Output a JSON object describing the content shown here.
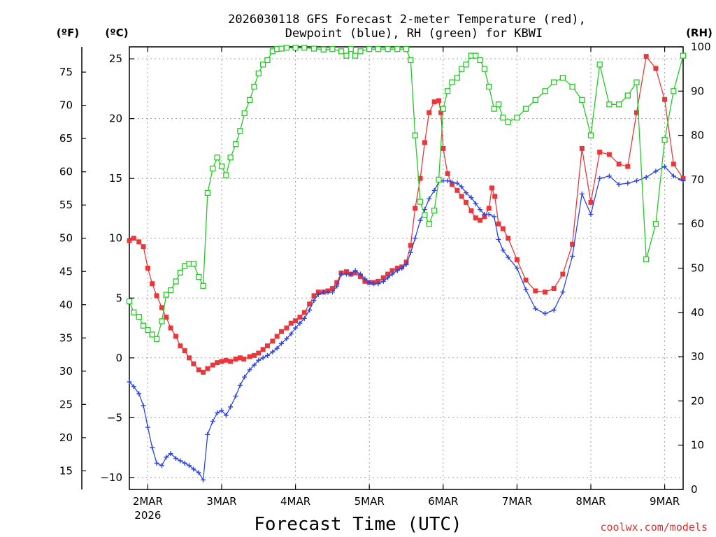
{
  "chart_data": {
    "type": "line",
    "title_line1": "2026030118 GFS Forecast 2-meter Temperature (red),",
    "title_line2": "Dewpoint (blue), RH (green) for KBWI",
    "xlabel": "Forecast Time (UTC)",
    "credit": "coolwx.com/models",
    "units": {
      "fahrenheit": "(ºF)",
      "celsius": "(ºC)",
      "rh": "(RH)"
    },
    "x_range_days": [
      -0.25,
      7.25
    ],
    "x_ticks": [
      {
        "day": 0,
        "label": "2MAR",
        "sublabel": "2026"
      },
      {
        "day": 1,
        "label": "3MAR"
      },
      {
        "day": 2,
        "label": "4MAR"
      },
      {
        "day": 3,
        "label": "5MAR"
      },
      {
        "day": 4,
        "label": "6MAR"
      },
      {
        "day": 5,
        "label": "7MAR"
      },
      {
        "day": 6,
        "label": "8MAR"
      },
      {
        "day": 7,
        "label": "9MAR"
      }
    ],
    "ylim_celsius": [
      -11,
      26
    ],
    "celsius_ticks": [
      "-10",
      "-5",
      "0",
      "5",
      "10",
      "15",
      "20",
      "25"
    ],
    "fahrenheit_ticks": [
      "15",
      "20",
      "25",
      "30",
      "35",
      "40",
      "45",
      "50",
      "55",
      "60",
      "65",
      "70",
      "75"
    ],
    "ylim_rh": [
      0,
      100
    ],
    "rh_ticks": [
      "0",
      "10",
      "20",
      "30",
      "40",
      "50",
      "60",
      "70",
      "80",
      "90",
      "100"
    ],
    "colors": {
      "temperature": "#e8383c",
      "dewpoint": "#2c44e0",
      "rh": "#22cc22",
      "grid": "#a0a0a0",
      "credit": "#e03030"
    },
    "series": [
      {
        "name": "Temperature",
        "unit": "C",
        "points": [
          [
            -0.25,
            9.8
          ],
          [
            -0.19,
            10
          ],
          [
            -0.12,
            9.7
          ],
          [
            -0.06,
            9.3
          ],
          [
            0,
            7.5
          ],
          [
            0.06,
            6.2
          ],
          [
            0.12,
            5.2
          ],
          [
            0.19,
            4.2
          ],
          [
            0.25,
            3.4
          ],
          [
            0.31,
            2.5
          ],
          [
            0.38,
            1.8
          ],
          [
            0.44,
            1.0
          ],
          [
            0.5,
            0.6
          ],
          [
            0.56,
            0.0
          ],
          [
            0.62,
            -0.5
          ],
          [
            0.69,
            -1.0
          ],
          [
            0.75,
            -1.2
          ],
          [
            0.81,
            -0.9
          ],
          [
            0.88,
            -0.6
          ],
          [
            0.94,
            -0.4
          ],
          [
            1.0,
            -0.3
          ],
          [
            1.06,
            -0.2
          ],
          [
            1.12,
            -0.3
          ],
          [
            1.19,
            -0.1
          ],
          [
            1.25,
            0.0
          ],
          [
            1.3,
            -0.1
          ],
          [
            1.38,
            0.1
          ],
          [
            1.44,
            0.2
          ],
          [
            1.5,
            0.4
          ],
          [
            1.56,
            0.7
          ],
          [
            1.62,
            1.0
          ],
          [
            1.69,
            1.4
          ],
          [
            1.75,
            1.8
          ],
          [
            1.81,
            2.2
          ],
          [
            1.88,
            2.5
          ],
          [
            1.94,
            2.9
          ],
          [
            2.0,
            3.1
          ],
          [
            2.06,
            3.4
          ],
          [
            2.12,
            3.8
          ],
          [
            2.19,
            4.5
          ],
          [
            2.25,
            5.2
          ],
          [
            2.31,
            5.5
          ],
          [
            2.38,
            5.5
          ],
          [
            2.44,
            5.6
          ],
          [
            2.5,
            5.8
          ],
          [
            2.56,
            6.3
          ],
          [
            2.62,
            7.1
          ],
          [
            2.69,
            7.2
          ],
          [
            2.75,
            7.0
          ],
          [
            2.81,
            7.1
          ],
          [
            2.88,
            6.8
          ],
          [
            2.94,
            6.4
          ],
          [
            3.0,
            6.3
          ],
          [
            3.06,
            6.3
          ],
          [
            3.12,
            6.4
          ],
          [
            3.19,
            6.7
          ],
          [
            3.25,
            7.0
          ],
          [
            3.31,
            7.3
          ],
          [
            3.38,
            7.5
          ],
          [
            3.44,
            7.6
          ],
          [
            3.5,
            8.0
          ],
          [
            3.56,
            9.4
          ],
          [
            3.62,
            12.5
          ],
          [
            3.69,
            15.0
          ],
          [
            3.75,
            18.0
          ],
          [
            3.81,
            20.5
          ],
          [
            3.88,
            21.4
          ],
          [
            3.94,
            21.5
          ],
          [
            3.97,
            20.5
          ],
          [
            4.0,
            17.5
          ],
          [
            4.06,
            15.4
          ],
          [
            4.12,
            14.5
          ],
          [
            4.19,
            14.0
          ],
          [
            4.25,
            13.5
          ],
          [
            4.31,
            13.0
          ],
          [
            4.38,
            12.3
          ],
          [
            4.44,
            11.7
          ],
          [
            4.5,
            11.5
          ],
          [
            4.56,
            11.8
          ],
          [
            4.62,
            12.5
          ],
          [
            4.66,
            14.2
          ],
          [
            4.7,
            13.5
          ],
          [
            4.75,
            11.2
          ],
          [
            4.81,
            10.8
          ],
          [
            4.88,
            10.0
          ],
          [
            5.0,
            8.2
          ],
          [
            5.12,
            6.5
          ],
          [
            5.25,
            5.6
          ],
          [
            5.38,
            5.5
          ],
          [
            5.5,
            5.8
          ],
          [
            5.62,
            7.0
          ],
          [
            5.75,
            9.5
          ],
          [
            5.88,
            17.5
          ],
          [
            6.0,
            13.0
          ],
          [
            6.12,
            17.2
          ],
          [
            6.25,
            17.0
          ],
          [
            6.38,
            16.2
          ],
          [
            6.5,
            16.0
          ],
          [
            6.62,
            20.5
          ],
          [
            6.75,
            25.2
          ],
          [
            6.88,
            24.2
          ],
          [
            7.0,
            21.6
          ],
          [
            7.12,
            16.2
          ],
          [
            7.25,
            15.0
          ]
        ]
      },
      {
        "name": "Dewpoint",
        "unit": "C",
        "points": [
          [
            -0.25,
            -2.0
          ],
          [
            -0.19,
            -2.4
          ],
          [
            -0.12,
            -3.0
          ],
          [
            -0.06,
            -4.0
          ],
          [
            0,
            -5.8
          ],
          [
            0.06,
            -7.5
          ],
          [
            0.12,
            -8.8
          ],
          [
            0.19,
            -9.0
          ],
          [
            0.25,
            -8.3
          ],
          [
            0.31,
            -8.0
          ],
          [
            0.38,
            -8.4
          ],
          [
            0.44,
            -8.6
          ],
          [
            0.5,
            -8.8
          ],
          [
            0.56,
            -9.0
          ],
          [
            0.62,
            -9.3
          ],
          [
            0.69,
            -9.6
          ],
          [
            0.75,
            -10.2
          ],
          [
            0.81,
            -6.4
          ],
          [
            0.88,
            -5.3
          ],
          [
            0.94,
            -4.6
          ],
          [
            1.0,
            -4.4
          ],
          [
            1.06,
            -4.8
          ],
          [
            1.12,
            -4.1
          ],
          [
            1.19,
            -3.2
          ],
          [
            1.25,
            -2.3
          ],
          [
            1.31,
            -1.6
          ],
          [
            1.38,
            -1.0
          ],
          [
            1.44,
            -0.6
          ],
          [
            1.5,
            -0.2
          ],
          [
            1.56,
            0.0
          ],
          [
            1.62,
            0.2
          ],
          [
            1.69,
            0.5
          ],
          [
            1.75,
            0.8
          ],
          [
            1.81,
            1.2
          ],
          [
            1.88,
            1.6
          ],
          [
            1.94,
            2.0
          ],
          [
            2.0,
            2.5
          ],
          [
            2.06,
            2.9
          ],
          [
            2.12,
            3.3
          ],
          [
            2.19,
            4.0
          ],
          [
            2.25,
            4.8
          ],
          [
            2.31,
            5.3
          ],
          [
            2.38,
            5.5
          ],
          [
            2.44,
            5.5
          ],
          [
            2.5,
            5.5
          ],
          [
            2.56,
            6.0
          ],
          [
            2.62,
            7.0
          ],
          [
            2.69,
            7.0
          ],
          [
            2.75,
            7.0
          ],
          [
            2.81,
            7.3
          ],
          [
            2.88,
            7.0
          ],
          [
            2.94,
            6.6
          ],
          [
            3.0,
            6.3
          ],
          [
            3.06,
            6.2
          ],
          [
            3.12,
            6.2
          ],
          [
            3.19,
            6.4
          ],
          [
            3.25,
            6.7
          ],
          [
            3.31,
            7.0
          ],
          [
            3.38,
            7.3
          ],
          [
            3.44,
            7.5
          ],
          [
            3.5,
            7.8
          ],
          [
            3.56,
            8.8
          ],
          [
            3.62,
            10.0
          ],
          [
            3.69,
            11.5
          ],
          [
            3.75,
            12.4
          ],
          [
            3.81,
            13.3
          ],
          [
            3.88,
            14.0
          ],
          [
            3.94,
            14.7
          ],
          [
            4.0,
            14.8
          ],
          [
            4.06,
            14.8
          ],
          [
            4.12,
            14.7
          ],
          [
            4.19,
            14.6
          ],
          [
            4.25,
            14.3
          ],
          [
            4.31,
            13.8
          ],
          [
            4.38,
            13.4
          ],
          [
            4.44,
            12.9
          ],
          [
            4.5,
            12.4
          ],
          [
            4.56,
            12.0
          ],
          [
            4.62,
            12.0
          ],
          [
            4.69,
            11.8
          ],
          [
            4.75,
            9.9
          ],
          [
            4.81,
            9.0
          ],
          [
            4.88,
            8.4
          ],
          [
            5.0,
            7.5
          ],
          [
            5.12,
            5.7
          ],
          [
            5.25,
            4.1
          ],
          [
            5.38,
            3.7
          ],
          [
            5.5,
            4.0
          ],
          [
            5.62,
            5.5
          ],
          [
            5.75,
            8.5
          ],
          [
            5.88,
            13.7
          ],
          [
            6.0,
            12.0
          ],
          [
            6.12,
            15.0
          ],
          [
            6.25,
            15.2
          ],
          [
            6.38,
            14.5
          ],
          [
            6.5,
            14.6
          ],
          [
            6.62,
            14.8
          ],
          [
            6.75,
            15.1
          ],
          [
            6.88,
            15.6
          ],
          [
            7.0,
            16.0
          ],
          [
            7.12,
            15.2
          ],
          [
            7.25,
            14.8
          ]
        ]
      },
      {
        "name": "RH",
        "unit": "%",
        "points": [
          [
            -0.25,
            42.5
          ],
          [
            -0.19,
            40
          ],
          [
            -0.12,
            39
          ],
          [
            -0.06,
            37
          ],
          [
            0,
            36
          ],
          [
            0.06,
            35
          ],
          [
            0.12,
            34
          ],
          [
            0.19,
            38
          ],
          [
            0.25,
            44
          ],
          [
            0.31,
            45
          ],
          [
            0.38,
            47
          ],
          [
            0.44,
            49
          ],
          [
            0.5,
            50.5
          ],
          [
            0.56,
            51
          ],
          [
            0.62,
            51
          ],
          [
            0.69,
            48
          ],
          [
            0.75,
            46
          ],
          [
            0.81,
            67
          ],
          [
            0.88,
            72.5
          ],
          [
            0.94,
            75
          ],
          [
            1.0,
            73
          ],
          [
            1.06,
            71
          ],
          [
            1.12,
            75
          ],
          [
            1.19,
            78
          ],
          [
            1.25,
            81
          ],
          [
            1.31,
            85
          ],
          [
            1.38,
            88
          ],
          [
            1.44,
            91
          ],
          [
            1.5,
            94
          ],
          [
            1.56,
            96
          ],
          [
            1.62,
            97
          ],
          [
            1.69,
            99
          ],
          [
            1.75,
            99.5
          ],
          [
            1.81,
            99.6
          ],
          [
            1.88,
            99.8
          ],
          [
            2.0,
            99.8
          ],
          [
            2.12,
            99.8
          ],
          [
            2.25,
            99.6
          ],
          [
            2.38,
            99.4
          ],
          [
            2.5,
            99.5
          ],
          [
            2.62,
            99.0
          ],
          [
            2.69,
            98
          ],
          [
            2.75,
            99.5
          ],
          [
            2.81,
            98
          ],
          [
            2.88,
            99
          ],
          [
            3.0,
            99.5
          ],
          [
            3.12,
            99.5
          ],
          [
            3.25,
            99.5
          ],
          [
            3.38,
            99.5
          ],
          [
            3.5,
            99.5
          ],
          [
            3.56,
            97
          ],
          [
            3.62,
            80
          ],
          [
            3.69,
            65
          ],
          [
            3.75,
            62
          ],
          [
            3.81,
            60
          ],
          [
            3.88,
            63
          ],
          [
            3.94,
            70
          ],
          [
            4.0,
            86
          ],
          [
            4.06,
            90
          ],
          [
            4.12,
            92
          ],
          [
            4.19,
            93
          ],
          [
            4.25,
            95
          ],
          [
            4.31,
            96
          ],
          [
            4.38,
            98
          ],
          [
            4.44,
            98
          ],
          [
            4.5,
            97
          ],
          [
            4.56,
            95
          ],
          [
            4.62,
            91
          ],
          [
            4.69,
            86
          ],
          [
            4.75,
            87
          ],
          [
            4.81,
            84
          ],
          [
            4.88,
            83
          ],
          [
            5.0,
            84
          ],
          [
            5.12,
            86
          ],
          [
            5.25,
            88
          ],
          [
            5.38,
            90
          ],
          [
            5.5,
            92
          ],
          [
            5.62,
            93
          ],
          [
            5.75,
            91
          ],
          [
            5.88,
            88
          ],
          [
            6.0,
            80
          ],
          [
            6.12,
            96
          ],
          [
            6.25,
            87
          ],
          [
            6.38,
            87
          ],
          [
            6.5,
            89
          ],
          [
            6.62,
            92
          ],
          [
            6.75,
            52
          ],
          [
            6.88,
            60
          ],
          [
            7.0,
            79
          ],
          [
            7.12,
            90
          ],
          [
            7.25,
            98
          ]
        ]
      }
    ]
  }
}
